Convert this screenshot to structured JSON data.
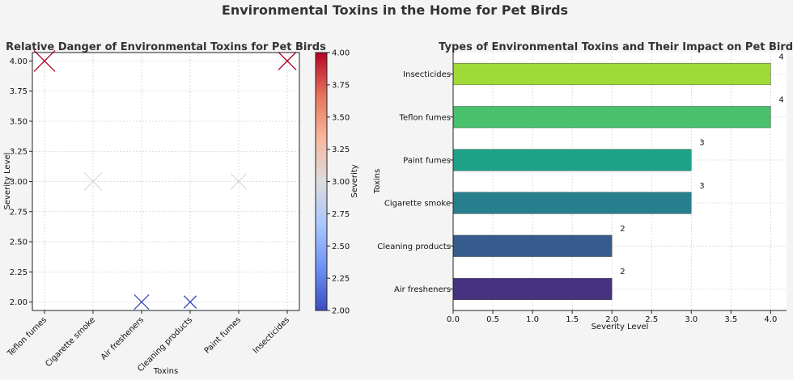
{
  "suptitle": "Environmental Toxins in the Home for Pet Birds",
  "chart_data": [
    {
      "type": "scatter",
      "title": "Relative Danger of Environmental Toxins for Pet Birds",
      "xlabel": "Toxins",
      "ylabel": "Severity Level",
      "categories": [
        "Teflon fumes",
        "Cigarette smoke",
        "Air fresheners",
        "Cleaning products",
        "Paint fumes",
        "Insecticides"
      ],
      "values": [
        4,
        3,
        2,
        2,
        3,
        4
      ],
      "marker": "x",
      "marker_sizes_relative": [
        1,
        0.85,
        0.7,
        0.6,
        0.75,
        0.85
      ],
      "ylim": [
        1.93,
        4.07
      ],
      "yticks": [
        "2.00",
        "2.25",
        "2.50",
        "2.75",
        "3.00",
        "3.25",
        "3.50",
        "3.75",
        "4.00"
      ],
      "ytick_values": [
        2.0,
        2.25,
        2.5,
        2.75,
        3.0,
        3.25,
        3.5,
        3.75,
        4.0
      ],
      "grid": true,
      "colormap": "coolwarm",
      "colorbar": {
        "label": "Severity",
        "range": [
          2,
          4
        ],
        "ticks": [
          "2.00",
          "2.25",
          "2.50",
          "2.75",
          "3.00",
          "3.25",
          "3.50",
          "3.75",
          "4.00"
        ],
        "tick_values": [
          2.0,
          2.25,
          2.5,
          2.75,
          3.0,
          3.25,
          3.5,
          3.75,
          4.0
        ],
        "colors": [
          "#3b4cc0",
          "#6f92f3",
          "#aac7fd",
          "#dddcdc",
          "#f7b89c",
          "#e7745b",
          "#b40426"
        ]
      }
    },
    {
      "type": "bar",
      "orientation": "horizontal",
      "title": "Types of Environmental Toxins and Their Impact on Pet Birds",
      "xlabel": "Severity Level",
      "ylabel": "Toxins",
      "categories": [
        "Air fresheners",
        "Cleaning products",
        "Cigarette smoke",
        "Paint fumes",
        "Teflon fumes",
        "Insecticides"
      ],
      "values": [
        2,
        2,
        3,
        3,
        4,
        4
      ],
      "data_labels": [
        "2",
        "2",
        "3",
        "3",
        "4",
        "4"
      ],
      "colors": [
        "#46327e",
        "#365c8d",
        "#277f8e",
        "#1fa187",
        "#4ac16d",
        "#a0da39"
      ],
      "xlim": [
        0,
        4.2
      ],
      "xticks": [
        "0.0",
        "0.5",
        "1.0",
        "1.5",
        "2.0",
        "2.5",
        "3.0",
        "3.5",
        "4.0"
      ],
      "xtick_values": [
        0,
        0.5,
        1.0,
        1.5,
        2.0,
        2.5,
        3.0,
        3.5,
        4.0
      ],
      "grid": true
    }
  ]
}
